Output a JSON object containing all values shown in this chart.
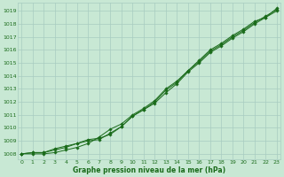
{
  "bg_color": "#c8e8d4",
  "grid_color": "#a8ccc0",
  "line_color": "#1a6b1a",
  "xlabel": "Graphe pression niveau de la mer (hPa)",
  "ylabel_ticks": [
    1008,
    1009,
    1010,
    1011,
    1012,
    1013,
    1014,
    1015,
    1016,
    1017,
    1018,
    1019
  ],
  "xticks": [
    0,
    1,
    2,
    3,
    4,
    5,
    6,
    7,
    8,
    9,
    10,
    11,
    12,
    13,
    14,
    15,
    16,
    17,
    18,
    19,
    20,
    21,
    22,
    23
  ],
  "xlim": [
    -0.3,
    23.3
  ],
  "ylim": [
    1007.6,
    1019.6
  ],
  "series1": [
    1008.0,
    1008.1,
    1008.1,
    1008.4,
    1008.6,
    1008.8,
    1009.0,
    1009.1,
    1009.6,
    1010.1,
    1010.9,
    1011.4,
    1012.0,
    1012.9,
    1013.5,
    1014.4,
    1015.1,
    1015.9,
    1016.4,
    1017.0,
    1017.5,
    1018.1,
    1018.6,
    1019.1
  ],
  "series2": [
    1008.0,
    1008.1,
    1008.1,
    1008.3,
    1008.5,
    1008.8,
    1009.1,
    1009.2,
    1009.5,
    1010.1,
    1010.9,
    1011.4,
    1011.9,
    1012.7,
    1013.4,
    1014.3,
    1015.0,
    1015.8,
    1016.3,
    1016.9,
    1017.4,
    1018.0,
    1018.5,
    1019.2
  ],
  "series3": [
    1008.0,
    1008.0,
    1008.0,
    1008.1,
    1008.3,
    1008.5,
    1008.8,
    1009.3,
    1009.9,
    1010.3,
    1011.0,
    1011.5,
    1012.1,
    1013.0,
    1013.6,
    1014.4,
    1015.2,
    1016.0,
    1016.5,
    1017.1,
    1017.6,
    1018.2,
    1018.5,
    1019.0
  ]
}
